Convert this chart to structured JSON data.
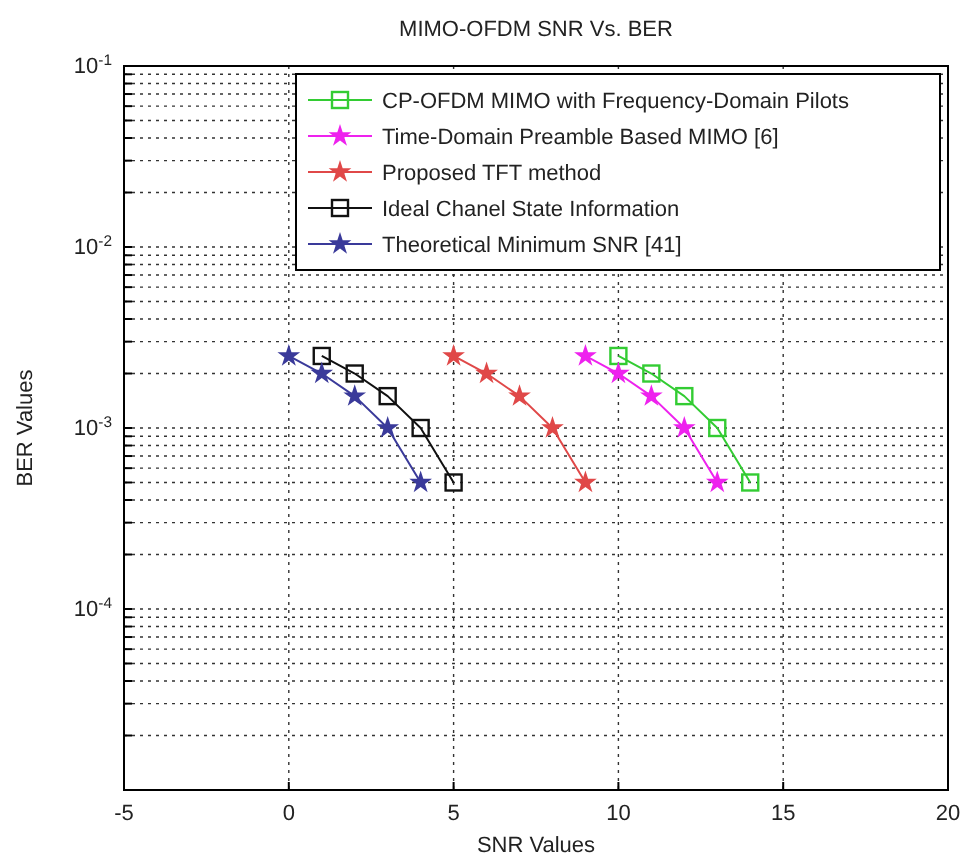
{
  "chart_data": {
    "type": "line",
    "title": "MIMO-OFDM SNR Vs. BER",
    "xlabel": "SNR Values",
    "ylabel": "BER Values",
    "xlim": [
      -5,
      20
    ],
    "xticks": [
      -5,
      0,
      5,
      10,
      15,
      20
    ],
    "ylim": [
      1e-05,
      0.1
    ],
    "log": true,
    "yticks": [
      {
        "value": 1e-05,
        "label": null
      },
      {
        "value": 2e-05,
        "label": null
      },
      {
        "value": 3e-05,
        "label": null
      },
      {
        "value": 4e-05,
        "label": null
      },
      {
        "value": 5e-05,
        "label": null
      },
      {
        "value": 6e-05,
        "label": null
      },
      {
        "value": 7e-05,
        "label": null
      },
      {
        "value": 8e-05,
        "label": null
      },
      {
        "value": 9e-05,
        "label": null
      },
      {
        "value": 0.0001,
        "label": "10$^{-4}$"
      },
      {
        "value": 0.0002,
        "label": null
      },
      {
        "value": 0.0003,
        "label": null
      },
      {
        "value": 0.0004,
        "label": null
      },
      {
        "value": 0.0005,
        "label": null
      },
      {
        "value": 0.0006,
        "label": null
      },
      {
        "value": 0.0007,
        "label": null
      },
      {
        "value": 0.0008,
        "label": null
      },
      {
        "value": 0.0009,
        "label": null
      },
      {
        "value": 0.001,
        "label": "10$^{-3}$"
      },
      {
        "value": 0.002,
        "label": null
      },
      {
        "value": 0.003,
        "label": null
      },
      {
        "value": 0.004,
        "label": null
      },
      {
        "value": 0.005,
        "label": null
      },
      {
        "value": 0.006,
        "label": null
      },
      {
        "value": 0.007,
        "label": null
      },
      {
        "value": 0.008,
        "label": null
      },
      {
        "value": 0.009,
        "label": null
      },
      {
        "value": 0.01,
        "label": "10$^{-2}$"
      },
      {
        "value": 0.02,
        "label": null
      },
      {
        "value": 0.03,
        "label": null
      },
      {
        "value": 0.04,
        "label": null
      },
      {
        "value": 0.05,
        "label": null
      },
      {
        "value": 0.06,
        "label": null
      },
      {
        "value": 0.07,
        "label": null
      },
      {
        "value": 0.08,
        "label": null
      },
      {
        "value": 0.09,
        "label": null
      },
      {
        "value": 0.1,
        "label": "10$^{-1}$"
      }
    ],
    "grid": true,
    "legend": "top right",
    "line_style": "solid",
    "series": [
      {
        "name": "CP-OFDM MIMO with Frequency-Domain Pilots",
        "color": "#33cc33",
        "marker": "square",
        "x": [
          10,
          11,
          12,
          13,
          14
        ],
        "values": [
          0.0025,
          0.002,
          0.0015,
          0.001,
          0.0005
        ]
      },
      {
        "name": "Time-Domain Preamble Based MIMO [6]",
        "color": "#ee22ee",
        "marker": "star",
        "x": [
          9,
          10,
          11,
          12,
          13
        ],
        "values": [
          0.0025,
          0.002,
          0.0015,
          0.001,
          0.0005
        ]
      },
      {
        "name": "Proposed TFT method",
        "color": "#e04848",
        "marker": "star",
        "x": [
          5,
          6,
          7,
          8,
          9
        ],
        "values": [
          0.0025,
          0.002,
          0.0015,
          0.001,
          0.0005
        ]
      },
      {
        "name": "Ideal Chanel State Information",
        "color": "#111111",
        "marker": "square",
        "x": [
          1,
          2,
          3,
          4,
          5
        ],
        "values": [
          0.0025,
          0.002,
          0.0015,
          0.001,
          0.0005
        ]
      },
      {
        "name": "Theoretical Minimum SNR [41]",
        "color": "#3a3a9a",
        "marker": "star",
        "x": [
          0,
          1,
          2,
          3,
          4
        ],
        "values": [
          0.0025,
          0.002,
          0.0015,
          0.001,
          0.0005
        ]
      }
    ]
  }
}
